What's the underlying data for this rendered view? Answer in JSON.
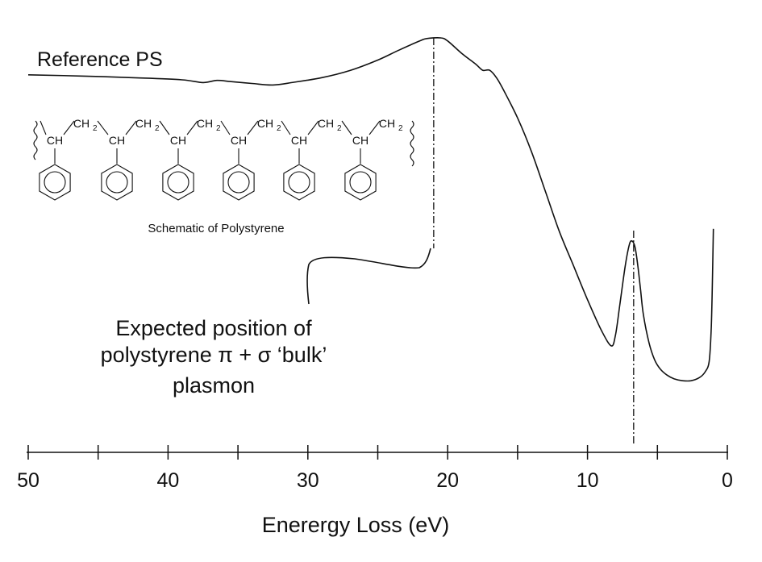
{
  "chart_data": {
    "type": "line",
    "title": "",
    "xlabel": "Enerergy Loss (eV)",
    "ylabel": "",
    "xlim": [
      50,
      0
    ],
    "x_reversed": true,
    "x_ticks": [
      50,
      40,
      30,
      20,
      10,
      0
    ],
    "x_minor_ticks": [
      45,
      35,
      25,
      15,
      5
    ],
    "grid": false,
    "legend": "none",
    "series": [
      {
        "name": "Reference PS",
        "x": [
          50,
          46,
          42,
          39,
          37.5,
          36.5,
          35.5,
          34,
          32.5,
          31,
          29,
          27,
          25,
          23.5,
          22,
          21.5,
          20.5,
          20,
          19,
          18,
          17.5,
          17,
          16.5,
          16,
          15,
          14,
          13,
          12,
          11,
          10,
          9,
          8.3,
          8,
          7.7,
          7.3,
          7,
          6.8,
          6.6,
          6.4,
          6.2,
          6,
          5.6,
          5.2,
          4.8,
          4.3,
          3.8,
          3.2,
          2.6,
          2,
          1.6,
          1.3,
          1.15,
          1.05,
          1.0
        ],
        "y": [
          0.88,
          0.876,
          0.87,
          0.864,
          0.855,
          0.862,
          0.858,
          0.852,
          0.847,
          0.856,
          0.871,
          0.894,
          0.928,
          0.96,
          0.99,
          0.998,
          1.0,
          0.99,
          0.95,
          0.915,
          0.895,
          0.895,
          0.87,
          0.83,
          0.74,
          0.63,
          0.5,
          0.37,
          0.26,
          0.15,
          0.05,
          0.0,
          0.035,
          0.13,
          0.26,
          0.33,
          0.34,
          0.32,
          0.26,
          0.18,
          0.1,
          0.01,
          -0.045,
          -0.075,
          -0.095,
          -0.107,
          -0.113,
          -0.113,
          -0.103,
          -0.085,
          -0.05,
          0.06,
          0.25,
          0.38
        ]
      }
    ],
    "markers": [
      {
        "x": 21,
        "style": "dash-dot",
        "label": "Expected position of polystyrene π + σ ‘bulk’ plasmon"
      },
      {
        "x": 6.7,
        "style": "dash-dot"
      }
    ],
    "annotations": [
      {
        "text": "Reference PS"
      },
      {
        "text": "Expected position of"
      },
      {
        "text": "polystyrene π + σ ‘bulk’"
      },
      {
        "text": "plasmon"
      },
      {
        "text": "Schematic of Polystyrene"
      }
    ]
  },
  "inset": {
    "caption": "Schematic of Polystyrene",
    "chain_group": "CH",
    "methylene_main": "CH",
    "methylene_sub": "2"
  }
}
